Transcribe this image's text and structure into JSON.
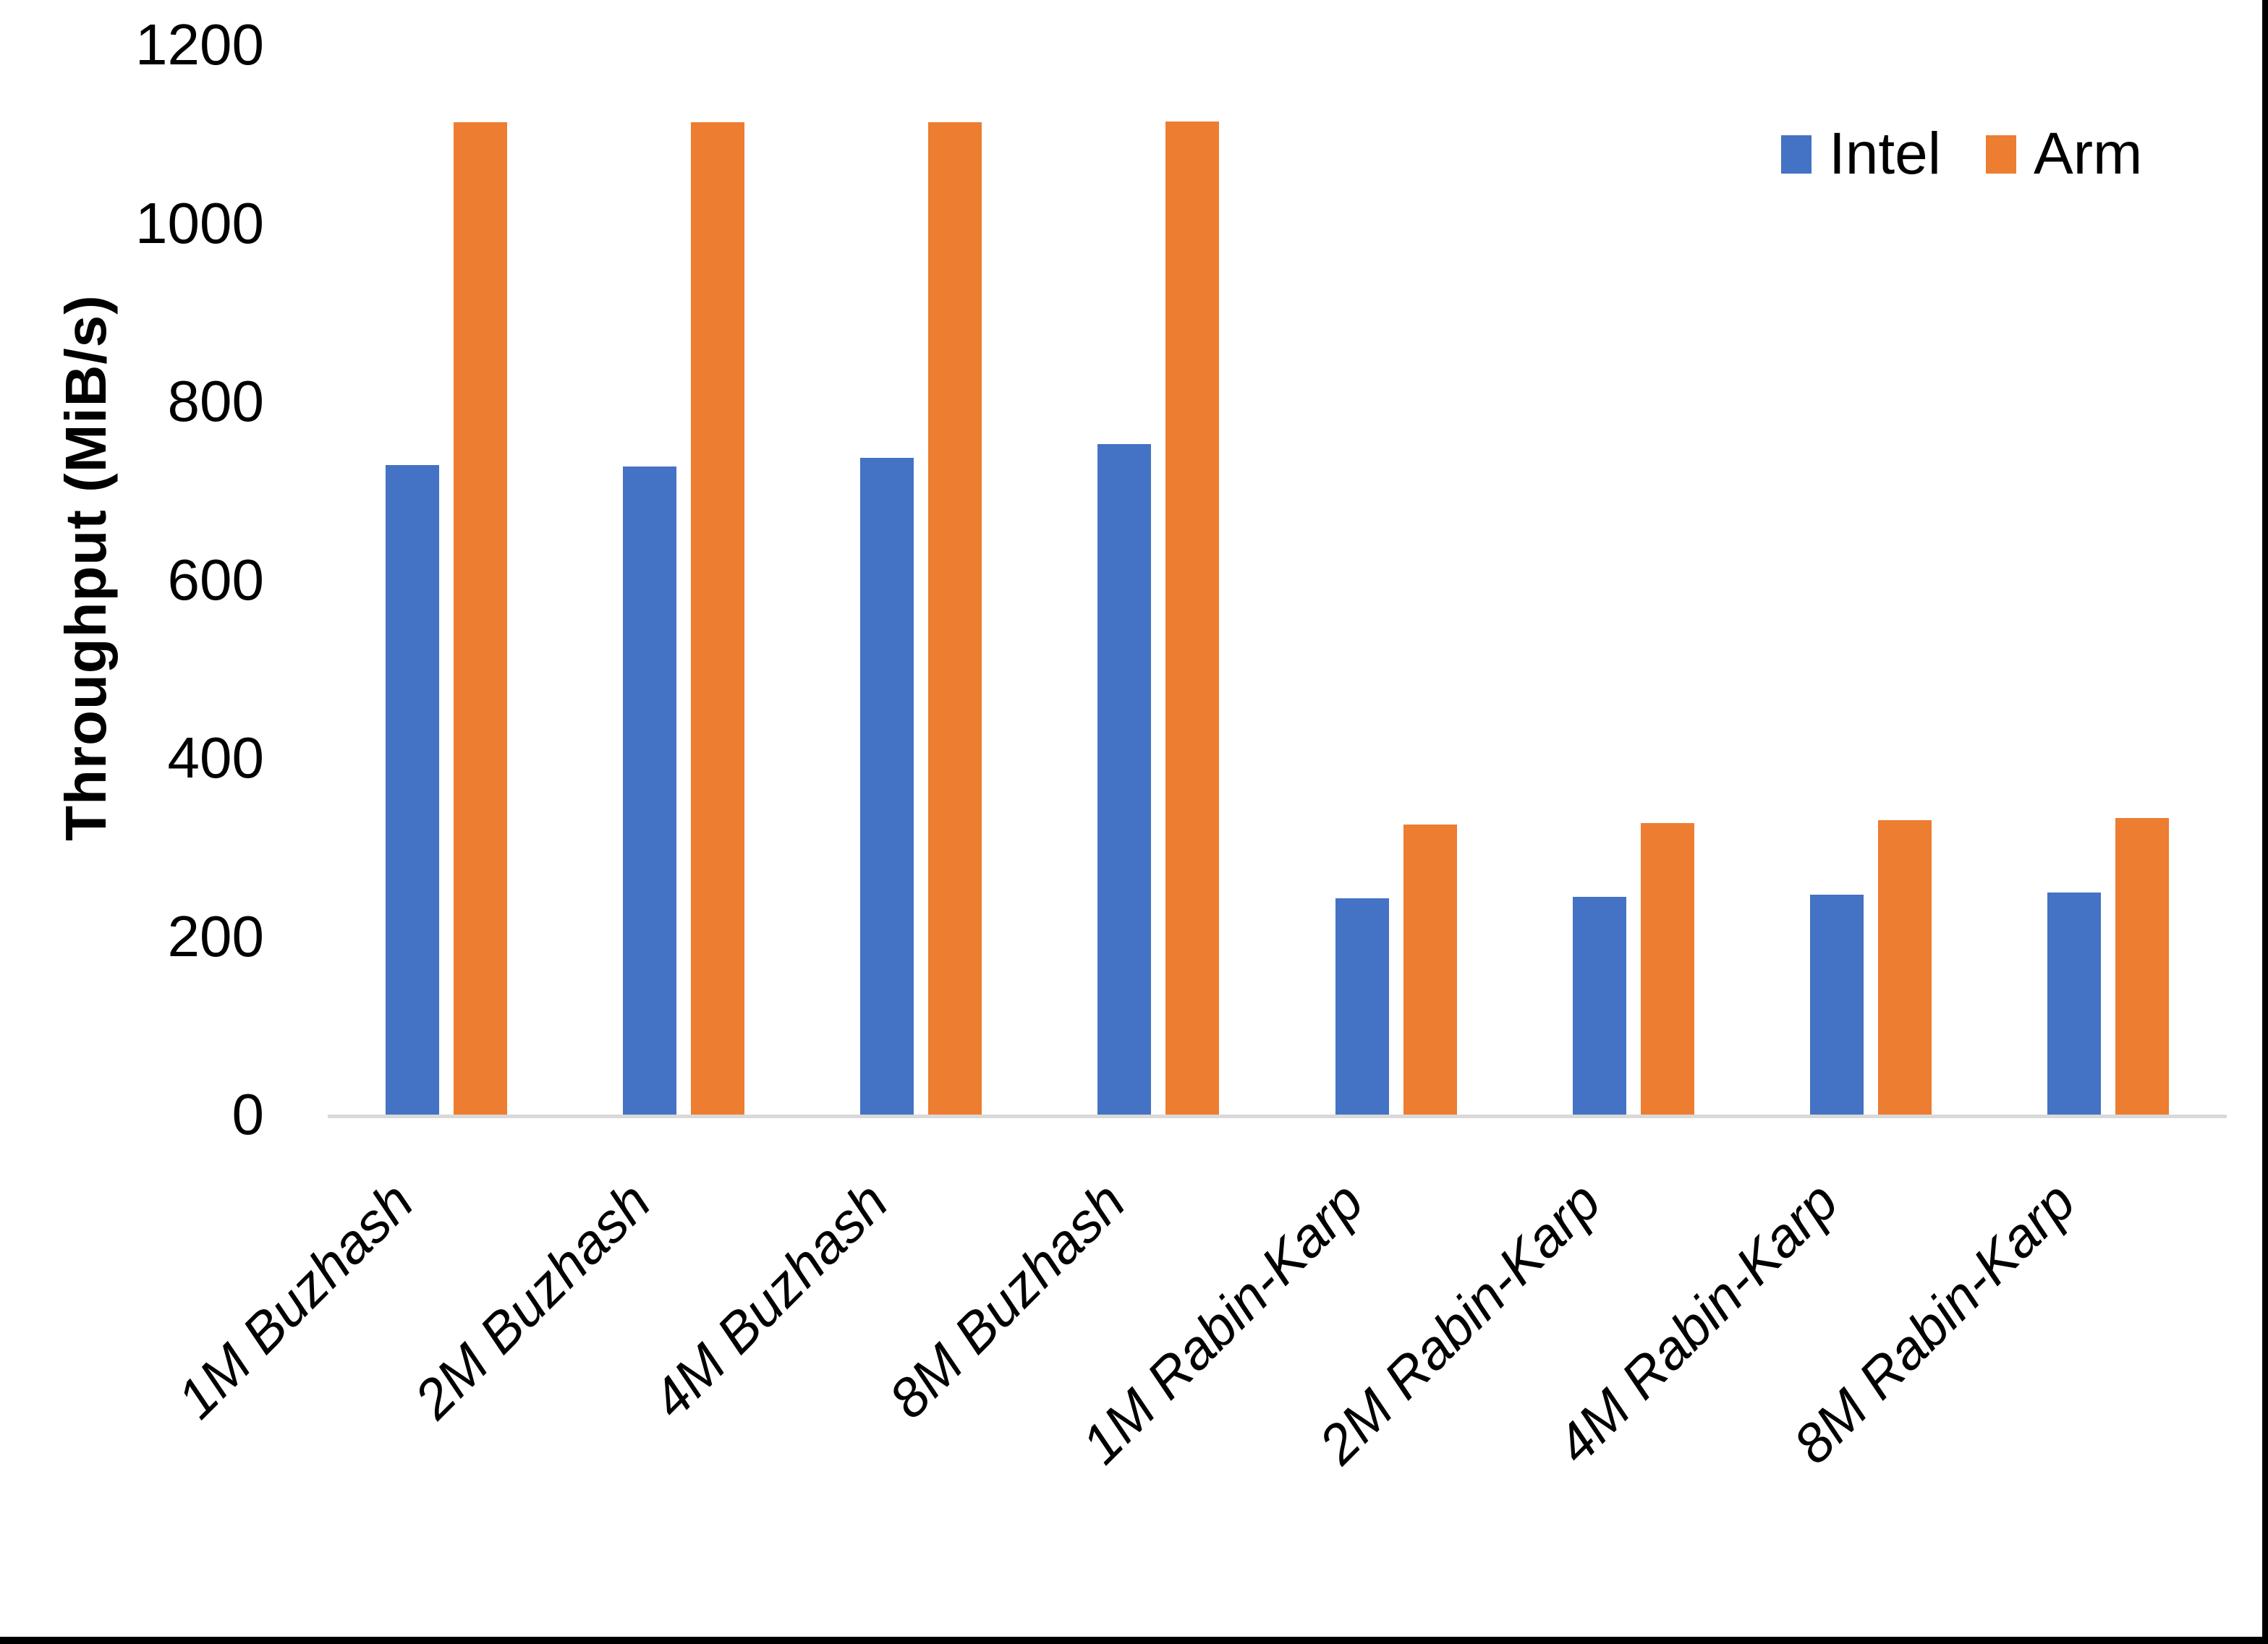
{
  "chart_data": {
    "type": "bar",
    "title": "",
    "ylabel": "Throughput (MiB/s)",
    "xlabel": "",
    "categories": [
      "1M Buzhash",
      "2M Buzhash",
      "4M Buzhash",
      "8M Buzhash",
      "1M Rabin-Karp",
      "2M Rabin-Karp",
      "4M Rabin-Karp",
      "8M Rabin-Karp"
    ],
    "series": [
      {
        "name": "Intel",
        "color": "#4472C4",
        "values": [
          729,
          727,
          737,
          752,
          243,
          244,
          247,
          249
        ]
      },
      {
        "name": "Arm",
        "color": "#ED7D31",
        "values": [
          1113,
          1113,
          1113,
          1114,
          325,
          327,
          330,
          333
        ]
      }
    ],
    "ylim": [
      0,
      1200
    ],
    "yticks": [
      0,
      200,
      400,
      600,
      800,
      1000,
      1200
    ],
    "grid": false,
    "legend_position": "top-right",
    "x_label_rotation_deg": 45
  },
  "colors": {
    "background": "#FFFFFF",
    "text": "#000000",
    "axis_line": "#D9D9D9",
    "frame_border": "#000000"
  }
}
